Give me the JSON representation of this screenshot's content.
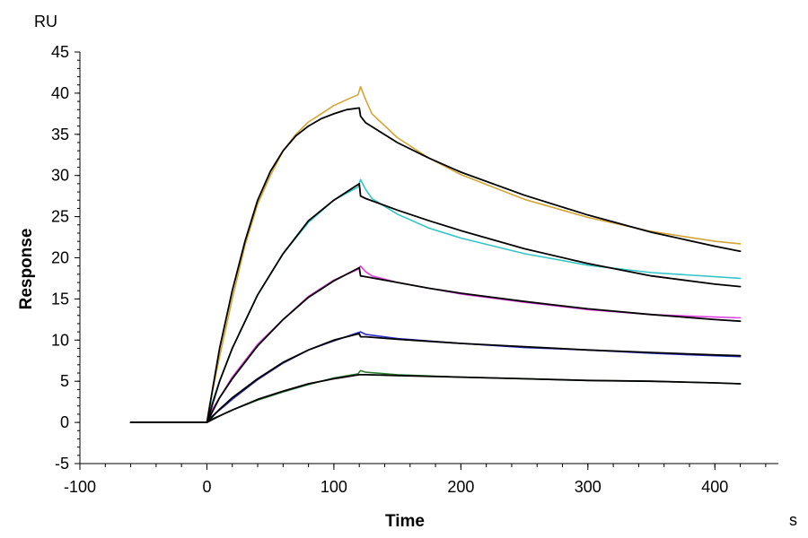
{
  "chart_data": {
    "type": "line",
    "title": "",
    "xlabel": "Time",
    "ylabel": "Response",
    "x_unit": "s",
    "y_unit": "RU",
    "xlim": [
      -100,
      450
    ],
    "ylim": [
      -5,
      45
    ],
    "xticks": [
      -100,
      0,
      100,
      200,
      300,
      400
    ],
    "yticks": [
      -5,
      0,
      5,
      10,
      15,
      20,
      25,
      30,
      35,
      40,
      45
    ],
    "grid": false,
    "injection_end_s": 120,
    "series": [
      {
        "name": "measured-1",
        "kind": "measured",
        "color": "#D4A537",
        "x": [
          -60,
          -20,
          0,
          2,
          10,
          20,
          30,
          40,
          50,
          60,
          70,
          80,
          90,
          100,
          110,
          119,
          121,
          125,
          130,
          150,
          175,
          200,
          250,
          300,
          350,
          400,
          420
        ],
        "y": [
          0,
          0,
          0,
          2,
          8,
          15,
          21.5,
          26.5,
          30,
          33,
          35,
          36.5,
          37.5,
          38.5,
          39.2,
          39.8,
          40.8,
          39.2,
          37.5,
          34.6,
          32.1,
          30.1,
          27.1,
          24.9,
          23.2,
          22.0,
          21.7
        ]
      },
      {
        "name": "fit-1",
        "kind": "fit",
        "color": "#000000",
        "x": [
          -60,
          -20,
          0,
          5,
          10,
          20,
          30,
          40,
          50,
          60,
          70,
          80,
          90,
          100,
          110,
          120,
          121,
          125,
          150,
          175,
          200,
          250,
          300,
          350,
          400,
          420
        ],
        "y": [
          0,
          0,
          0,
          4.5,
          9,
          16,
          22,
          27,
          30.5,
          33,
          34.8,
          36,
          36.9,
          37.5,
          38,
          38.2,
          37.2,
          36.4,
          34,
          32.1,
          30.4,
          27.6,
          25.2,
          23.1,
          21.4,
          20.8
        ]
      },
      {
        "name": "measured-2",
        "kind": "measured",
        "color": "#33C6C6",
        "x": [
          -60,
          -20,
          0,
          2,
          10,
          20,
          40,
          60,
          80,
          100,
          119,
          121,
          125,
          130,
          150,
          175,
          200,
          250,
          300,
          350,
          400,
          420
        ],
        "y": [
          0,
          0,
          0,
          1.5,
          5,
          9,
          15.5,
          20.5,
          24.3,
          27,
          28.6,
          29.5,
          28.3,
          27.2,
          25.3,
          23.6,
          22.4,
          20.5,
          19.1,
          18.2,
          17.7,
          17.5
        ]
      },
      {
        "name": "fit-2",
        "kind": "fit",
        "color": "#000000",
        "x": [
          -60,
          -20,
          0,
          5,
          10,
          20,
          40,
          60,
          80,
          100,
          120,
          121,
          125,
          150,
          175,
          200,
          250,
          300,
          350,
          400,
          420
        ],
        "y": [
          0,
          0,
          0,
          2.5,
          5,
          9,
          15.5,
          20.5,
          24.5,
          27,
          29,
          27.5,
          27.2,
          25.8,
          24.5,
          23.3,
          21.1,
          19.3,
          17.8,
          16.8,
          16.5
        ]
      },
      {
        "name": "measured-3",
        "kind": "measured",
        "color": "#E040E0",
        "x": [
          -60,
          -20,
          0,
          2,
          10,
          20,
          40,
          60,
          80,
          100,
          119,
          121,
          125,
          130,
          150,
          175,
          200,
          250,
          300,
          350,
          400,
          420
        ],
        "y": [
          0,
          0,
          0,
          1,
          3,
          5.5,
          9.5,
          12.5,
          15.3,
          17.3,
          18.6,
          19,
          18.3,
          17.8,
          17,
          16.3,
          15.6,
          14.6,
          13.7,
          13.1,
          12.8,
          12.7
        ]
      },
      {
        "name": "fit-3",
        "kind": "fit",
        "color": "#000000",
        "x": [
          -60,
          -20,
          0,
          5,
          10,
          20,
          40,
          60,
          80,
          100,
          120,
          121,
          125,
          150,
          175,
          200,
          250,
          300,
          350,
          400,
          420
        ],
        "y": [
          0,
          0,
          0,
          1.5,
          3,
          5.3,
          9.3,
          12.5,
          15.2,
          17.2,
          18.8,
          17.8,
          17.7,
          17,
          16.3,
          15.7,
          14.7,
          13.8,
          13.1,
          12.5,
          12.3
        ]
      },
      {
        "name": "measured-4",
        "kind": "measured",
        "color": "#2A2ACC",
        "x": [
          -60,
          -20,
          0,
          2,
          10,
          20,
          40,
          60,
          80,
          100,
          119,
          121,
          125,
          150,
          200,
          250,
          300,
          350,
          400,
          420
        ],
        "y": [
          0,
          0,
          0,
          0.5,
          1.5,
          2.8,
          5.2,
          7.2,
          8.8,
          9.9,
          10.9,
          11,
          10.7,
          10.2,
          9.6,
          9.1,
          8.8,
          8.4,
          8.1,
          8
        ]
      },
      {
        "name": "fit-4",
        "kind": "fit",
        "color": "#000000",
        "x": [
          -60,
          -20,
          0,
          5,
          10,
          20,
          40,
          60,
          80,
          100,
          120,
          121,
          125,
          150,
          200,
          250,
          300,
          350,
          400,
          420
        ],
        "y": [
          0,
          0,
          0,
          0.8,
          1.6,
          3,
          5.3,
          7.3,
          8.8,
          10,
          10.8,
          10.4,
          10.4,
          10.1,
          9.6,
          9.2,
          8.8,
          8.5,
          8.2,
          8.1
        ]
      },
      {
        "name": "measured-5",
        "kind": "measured",
        "color": "#2E7D32",
        "x": [
          -60,
          -20,
          0,
          2,
          10,
          20,
          40,
          60,
          80,
          100,
          119,
          121,
          125,
          150,
          200,
          250,
          300,
          350,
          400,
          420
        ],
        "y": [
          0,
          0,
          0,
          0.3,
          0.8,
          1.5,
          2.7,
          3.7,
          4.6,
          5.4,
          5.9,
          6.3,
          6.1,
          5.8,
          5.5,
          5.3,
          5.1,
          5,
          4.8,
          4.7
        ]
      },
      {
        "name": "fit-5",
        "kind": "fit",
        "color": "#000000",
        "x": [
          -60,
          -20,
          0,
          5,
          10,
          20,
          40,
          60,
          80,
          100,
          120,
          121,
          125,
          150,
          200,
          250,
          300,
          350,
          400,
          420
        ],
        "y": [
          0,
          0,
          0,
          0.4,
          0.8,
          1.5,
          2.8,
          3.8,
          4.7,
          5.3,
          5.8,
          5.8,
          5.8,
          5.7,
          5.5,
          5.3,
          5.1,
          5,
          4.8,
          4.7
        ]
      }
    ]
  }
}
